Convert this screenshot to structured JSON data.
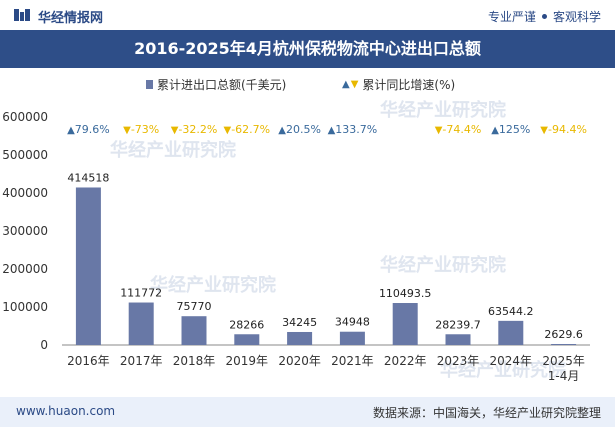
{
  "header": {
    "brand": "华经情报网",
    "slogan_left": "专业严谨",
    "slogan_right": "客观科学"
  },
  "title": "2016-2025年4月杭州保税物流中心进出口总额",
  "legend": {
    "bar_label": "累计进出口总额(千美元)",
    "growth_label": "累计同比增速(%)"
  },
  "footer": {
    "website": "www.huaon.com",
    "source": "数据来源：中国海关，华经产业研究院整理"
  },
  "watermark": "华经产业研究院",
  "colors": {
    "bar": "#6878a6",
    "up": "#3a6a9c",
    "down": "#e8b800",
    "title_bg": "#2e4e88"
  },
  "chart_data": {
    "type": "bar",
    "categories": [
      "2016年",
      "2017年",
      "2018年",
      "2019年",
      "2020年",
      "2021年",
      "2022年",
      "2023年",
      "2024年",
      "2025年\n1-4月"
    ],
    "series": [
      {
        "name": "累计进出口总额(千美元)",
        "values": [
          414518,
          111772,
          75770,
          28266,
          34245,
          34948,
          110493.5,
          28239.7,
          63544.2,
          2629.6
        ],
        "labels": [
          "414518",
          "111772",
          "75770",
          "28266",
          "34245",
          "34948",
          "110493.5",
          "28239.7",
          "63544.2",
          "2629.6"
        ]
      },
      {
        "name": "累计同比增速(%)",
        "values": [
          79.6,
          -73,
          -32.2,
          -62.7,
          20.5,
          133.7,
          null,
          -74.4,
          125,
          -94.4
        ],
        "labels": [
          "79.6%",
          "-73%",
          "-32.2%",
          "-62.7%",
          "20.5%",
          "133.7%",
          "",
          "-74.4%",
          "125%",
          "-94.4%"
        ]
      }
    ],
    "ylim": [
      0,
      600000
    ],
    "yticks": [
      "600000",
      "500000",
      "400000",
      "300000",
      "200000",
      "100000",
      "0"
    ],
    "ytick_values": [
      600000,
      500000,
      400000,
      300000,
      200000,
      100000,
      0
    ]
  }
}
